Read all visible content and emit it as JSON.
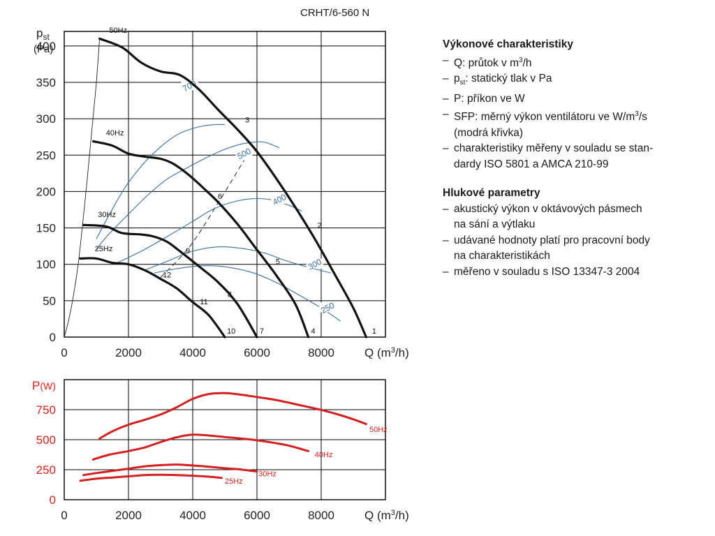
{
  "model": "CRHT/6-560 N",
  "sidebar": {
    "performance": {
      "heading": "Výkonové charakteristiky",
      "items": [
        {
          "pre": "Q: průtok v m",
          "sup": "3",
          "post": "/h"
        },
        {
          "pre": "p",
          "sub": "st",
          "post": ": statický tlak v Pa"
        },
        {
          "pre": "P: příkon ve W"
        },
        {
          "pre": "SFP: měrný výkon ventilátoru ve W/m",
          "sup": "3",
          "post": "/s"
        },
        {
          "pre": "(modrá křivka)",
          "cont": true
        },
        {
          "pre": "charakteristiky měřeny v souladu se stan-"
        },
        {
          "pre": "dardy ISO 5801 a AMCA 210-99",
          "cont": true
        }
      ]
    },
    "noise": {
      "heading": "Hlukové parametry",
      "items": [
        {
          "pre": "akustický výkon v oktávových pásmech"
        },
        {
          "pre": "na sání a výtlaku",
          "cont": true
        },
        {
          "pre": "udávané hodnoty platí pro pracovní body"
        },
        {
          "pre": "na charakteristikách",
          "cont": true
        },
        {
          "pre": "měřeno v souladu s ISO 13347-3 2004"
        }
      ]
    }
  },
  "chart_data": [
    {
      "type": "line",
      "ylabel_main": "p",
      "ylabel_sub": "st",
      "ylabel_unit": "(Pa)",
      "xlabel_main": "Q (m",
      "xlabel_sup": "3",
      "xlabel_end": "/h)",
      "xlim": [
        0,
        10000
      ],
      "ylim": [
        0,
        420
      ],
      "xticks": [
        0,
        2000,
        4000,
        6000,
        8000
      ],
      "yticks": [
        0,
        50,
        100,
        150,
        200,
        250,
        300,
        350,
        400
      ],
      "grid": true,
      "curves": [
        {
          "name": "50Hz",
          "points": [
            [
              1100,
              410
            ],
            [
              1800,
              398
            ],
            [
              2400,
              377
            ],
            [
              3000,
              365
            ],
            [
              3600,
              360
            ],
            [
              4200,
              340
            ],
            [
              4800,
              312
            ],
            [
              5400,
              285
            ],
            [
              6000,
              255
            ],
            [
              6600,
              218
            ],
            [
              7200,
              178
            ],
            [
              7800,
              135
            ],
            [
              8400,
              88
            ],
            [
              9000,
              40
            ],
            [
              9400,
              0
            ]
          ]
        },
        {
          "name": "40Hz",
          "points": [
            [
              900,
              269
            ],
            [
              1500,
              263
            ],
            [
              2000,
              252
            ],
            [
              2500,
              248
            ],
            [
              3000,
              245
            ],
            [
              3400,
              238
            ],
            [
              3900,
              222
            ],
            [
              4400,
              202
            ],
            [
              4800,
              185
            ],
            [
              5400,
              155
            ],
            [
              6000,
              120
            ],
            [
              6600,
              85
            ],
            [
              7200,
              45
            ],
            [
              7600,
              0
            ]
          ]
        },
        {
          "name": "30Hz",
          "points": [
            [
              600,
              154
            ],
            [
              1300,
              152
            ],
            [
              1800,
              143
            ],
            [
              2400,
              141
            ],
            [
              2800,
              138
            ],
            [
              3200,
              131
            ],
            [
              3600,
              118
            ],
            [
              4200,
              97
            ],
            [
              4800,
              75
            ],
            [
              5400,
              45
            ],
            [
              6000,
              0
            ]
          ]
        },
        {
          "name": "25Hz",
          "points": [
            [
              500,
              108
            ],
            [
              1000,
              108
            ],
            [
              1500,
              102
            ],
            [
              2000,
              100
            ],
            [
              2500,
              92
            ],
            [
              3000,
              80
            ],
            [
              3500,
              67
            ],
            [
              4000,
              48
            ],
            [
              4500,
              30
            ],
            [
              5000,
              0
            ]
          ]
        }
      ],
      "sfp_curves": [
        {
          "label": "700",
          "points": [
            [
              1000,
              135
            ],
            [
              1400,
              168
            ],
            [
              1900,
              206
            ],
            [
              2500,
              240
            ],
            [
              3100,
              265
            ],
            [
              3600,
              280
            ],
            [
              4200,
              289
            ],
            [
              4700,
              292
            ],
            [
              5000,
              292
            ]
          ]
        },
        {
          "label": "500",
          "points": [
            [
              1000,
              121
            ],
            [
              1400,
              142
            ],
            [
              2000,
              169
            ],
            [
              2600,
              195
            ],
            [
              3200,
              217
            ],
            [
              3800,
              232
            ],
            [
              4400,
              246
            ],
            [
              5000,
              258
            ],
            [
              5600,
              266
            ],
            [
              6200,
              268
            ],
            [
              6700,
              260
            ]
          ]
        },
        {
          "label": "400",
          "points": [
            [
              1600,
              101
            ],
            [
              2400,
              118
            ],
            [
              3200,
              138
            ],
            [
              4000,
              159
            ],
            [
              4600,
              175
            ],
            [
              5200,
              185
            ],
            [
              5800,
              190
            ],
            [
              6400,
              189
            ],
            [
              7000,
              181
            ],
            [
              7400,
              173
            ]
          ]
        },
        {
          "label": "300",
          "points": [
            [
              2500,
              92
            ],
            [
              3200,
              104
            ],
            [
              4000,
              118
            ],
            [
              4800,
              124
            ],
            [
              5500,
              122
            ],
            [
              6200,
              116
            ],
            [
              6900,
              105
            ],
            [
              7600,
              96
            ],
            [
              8300,
              88
            ]
          ]
        },
        {
          "label": "250",
          "points": [
            [
              2800,
              88
            ],
            [
              3500,
              94
            ],
            [
              4300,
              98
            ],
            [
              5100,
              96
            ],
            [
              5900,
              88
            ],
            [
              6600,
              75
            ],
            [
              7300,
              58
            ],
            [
              8000,
              40
            ],
            [
              8600,
              22
            ]
          ]
        }
      ],
      "sfp_label_positions": [
        [
          3900,
          345
        ],
        [
          5600,
          252
        ],
        [
          6700,
          189
        ],
        [
          7800,
          100
        ],
        [
          8200,
          40
        ]
      ],
      "curve_labels": [
        {
          "text": "50Hz",
          "x": 1400,
          "y": 418
        },
        {
          "text": "40Hz",
          "x": 1300,
          "y": 277
        },
        {
          "text": "30Hz",
          "x": 1050,
          "y": 165
        },
        {
          "text": "25Hz",
          "x": 950,
          "y": 118
        }
      ],
      "system_lines": [
        {
          "points": [
            [
              0,
              0
            ],
            [
              120,
              20
            ],
            [
              250,
              48
            ],
            [
              420,
              95
            ],
            [
              560,
              150
            ],
            [
              700,
              210
            ],
            [
              850,
              280
            ],
            [
              1000,
              350
            ],
            [
              1100,
              410
            ]
          ]
        },
        {
          "points": [
            [
              3000,
              82
            ],
            [
              3900,
              124
            ],
            [
              4800,
              185
            ],
            [
              5600,
              243
            ]
          ],
          "dashed": true
        }
      ],
      "point_labels": [
        {
          "text": "1",
          "x": 9650,
          "y": 5
        },
        {
          "text": "2",
          "x": 7950,
          "y": 150
        },
        {
          "text": "3",
          "x": 5700,
          "y": 295
        },
        {
          "text": "4",
          "x": 7750,
          "y": 5
        },
        {
          "text": "5",
          "x": 6650,
          "y": 100
        },
        {
          "text": "6",
          "x": 4850,
          "y": 190
        },
        {
          "text": "7",
          "x": 6150,
          "y": 5
        },
        {
          "text": "8",
          "x": 5150,
          "y": 55
        },
        {
          "text": "9",
          "x": 3850,
          "y": 115
        },
        {
          "text": "10",
          "x": 5200,
          "y": 5
        },
        {
          "text": "11",
          "x": 4350,
          "y": 45
        },
        {
          "text": "12",
          "x": 3200,
          "y": 82
        }
      ],
      "colors": {
        "pressure": "#111111",
        "sfp": "#3a6e9e",
        "system": "#222222",
        "grid": "#000000"
      }
    },
    {
      "type": "line",
      "ylabel_main": "P",
      "ylabel_unit": "(W)",
      "xlabel_main": "Q (m",
      "xlabel_sup": "3",
      "xlabel_end": "/h)",
      "xlim": [
        0,
        10000
      ],
      "ylim": [
        0,
        1000
      ],
      "xticks": [
        0,
        2000,
        4000,
        6000,
        8000
      ],
      "yticks": [
        0,
        250,
        500,
        750
      ],
      "grid": true,
      "series": [
        {
          "name": "50Hz",
          "points": [
            [
              1100,
              510
            ],
            [
              1500,
              570
            ],
            [
              2000,
              625
            ],
            [
              2500,
              665
            ],
            [
              3000,
              710
            ],
            [
              3500,
              770
            ],
            [
              4000,
              840
            ],
            [
              4500,
              880
            ],
            [
              5000,
              888
            ],
            [
              5500,
              875
            ],
            [
              6000,
              855
            ],
            [
              6500,
              835
            ],
            [
              7000,
              808
            ],
            [
              7500,
              778
            ],
            [
              8000,
              748
            ],
            [
              8500,
              712
            ],
            [
              9000,
              670
            ],
            [
              9400,
              630
            ]
          ]
        },
        {
          "name": "40Hz",
          "points": [
            [
              900,
              335
            ],
            [
              1400,
              375
            ],
            [
              2000,
              405
            ],
            [
              2500,
              435
            ],
            [
              3000,
              480
            ],
            [
              3500,
              520
            ],
            [
              4000,
              542
            ],
            [
              4500,
              535
            ],
            [
              5000,
              522
            ],
            [
              5500,
              510
            ],
            [
              6000,
              495
            ],
            [
              6500,
              475
            ],
            [
              7000,
              450
            ],
            [
              7600,
              405
            ]
          ]
        },
        {
          "name": "30Hz",
          "points": [
            [
              600,
              205
            ],
            [
              1000,
              222
            ],
            [
              1500,
              240
            ],
            [
              2000,
              258
            ],
            [
              2500,
              278
            ],
            [
              3000,
              288
            ],
            [
              3500,
              293
            ],
            [
              4000,
              285
            ],
            [
              4500,
              275
            ],
            [
              5000,
              262
            ],
            [
              5500,
              252
            ],
            [
              6000,
              235
            ]
          ]
        },
        {
          "name": "25Hz",
          "points": [
            [
              500,
              158
            ],
            [
              1000,
              175
            ],
            [
              1500,
              185
            ],
            [
              2000,
              195
            ],
            [
              2500,
              205
            ],
            [
              3000,
              208
            ],
            [
              3500,
              205
            ],
            [
              4000,
              200
            ],
            [
              4500,
              192
            ],
            [
              4900,
              182
            ]
          ]
        }
      ],
      "series_labels": [
        {
          "text": "50Hz",
          "x": 9500,
          "y": 565
        },
        {
          "text": "40Hz",
          "x": 7800,
          "y": 355
        },
        {
          "text": "30Hz",
          "x": 6050,
          "y": 195
        },
        {
          "text": "25Hz",
          "x": 5000,
          "y": 135
        }
      ],
      "colors": {
        "series": "#d42020",
        "axis_label": "#d42020",
        "grid": "#000000"
      }
    }
  ]
}
